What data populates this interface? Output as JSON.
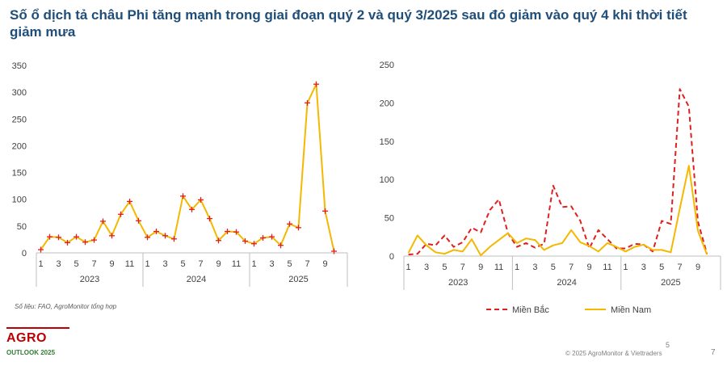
{
  "title": "Số ổ dịch tả châu Phi tăng mạnh trong giai đoạn quý 2 và quý 3/2025 sau đó giảm vào quý 4 khi thời tiết giảm mưa",
  "source": "Số liệu: FAO, AgroMonitor tổng hợp",
  "logo": {
    "main": "AGRO",
    "sub": "OUTLOOK 2025"
  },
  "footer": {
    "page_center": "5",
    "copyright": "© 2025 AgroMonitor & Viettraders",
    "page_number": "7"
  },
  "colors": {
    "yellow": "#f5b800",
    "red": "#e02020",
    "marker": "#e02020",
    "title": "#1f4e79"
  },
  "chart_data": [
    {
      "type": "line",
      "title": "",
      "xlabel": "",
      "ylabel": "",
      "ylim": [
        0,
        350
      ],
      "yticks": [
        0,
        50,
        100,
        150,
        200,
        250,
        300,
        350
      ],
      "x_tick_labels": [
        "1",
        "",
        "3",
        "",
        "5",
        "",
        "7",
        "",
        "9",
        "",
        "11",
        "",
        "1",
        "",
        "3",
        "",
        "5",
        "",
        "7",
        "",
        "9",
        "",
        "11",
        "",
        "1",
        "",
        "3",
        "",
        "5",
        "",
        "7",
        "",
        "9",
        "",
        ""
      ],
      "groups": [
        {
          "label": "2023",
          "start": 0,
          "end": 11
        },
        {
          "label": "2024",
          "start": 12,
          "end": 23
        },
        {
          "label": "2025",
          "start": 24,
          "end": 34
        }
      ],
      "series": [
        {
          "name": "",
          "color": "#f5b800",
          "marker": "plus",
          "values": [
            6,
            30,
            29,
            19,
            30,
            20,
            24,
            59,
            32,
            72,
            96,
            60,
            29,
            40,
            32,
            26,
            106,
            81,
            99,
            64,
            23,
            40,
            39,
            22,
            17,
            28,
            30,
            14,
            54,
            47,
            280,
            315,
            78,
            3
          ]
        }
      ]
    },
    {
      "type": "line",
      "title": "",
      "xlabel": "",
      "ylabel": "",
      "ylim": [
        0,
        250
      ],
      "yticks": [
        0,
        50,
        100,
        150,
        200,
        250
      ],
      "x_tick_labels": [
        "1",
        "",
        "3",
        "",
        "5",
        "",
        "7",
        "",
        "9",
        "",
        "11",
        "",
        "1",
        "",
        "3",
        "",
        "5",
        "",
        "7",
        "",
        "9",
        "",
        "11",
        "",
        "1",
        "",
        "3",
        "",
        "5",
        "",
        "7",
        "",
        "9",
        "",
        ""
      ],
      "groups": [
        {
          "label": "2023",
          "start": 0,
          "end": 11
        },
        {
          "label": "2024",
          "start": 12,
          "end": 23
        },
        {
          "label": "2025",
          "start": 24,
          "end": 34
        }
      ],
      "legend": {
        "position": "bottom"
      },
      "series": [
        {
          "name": "Miền Bắc",
          "color": "#e02020",
          "dash": true,
          "values": [
            2,
            3,
            16,
            14,
            27,
            12,
            18,
            37,
            31,
            60,
            74,
            30,
            12,
            17,
            11,
            16,
            92,
            64,
            65,
            46,
            10,
            34,
            22,
            10,
            10,
            16,
            15,
            6,
            46,
            42,
            218,
            195,
            45,
            3
          ]
        },
        {
          "name": "Miền Nam",
          "color": "#f5b800",
          "dash": false,
          "values": [
            4,
            27,
            14,
            5,
            3,
            8,
            6,
            22,
            1,
            12,
            21,
            30,
            17,
            23,
            21,
            8,
            14,
            17,
            34,
            18,
            13,
            6,
            17,
            12,
            6,
            12,
            15,
            8,
            8,
            5,
            62,
            118,
            33,
            2
          ]
        }
      ]
    }
  ]
}
